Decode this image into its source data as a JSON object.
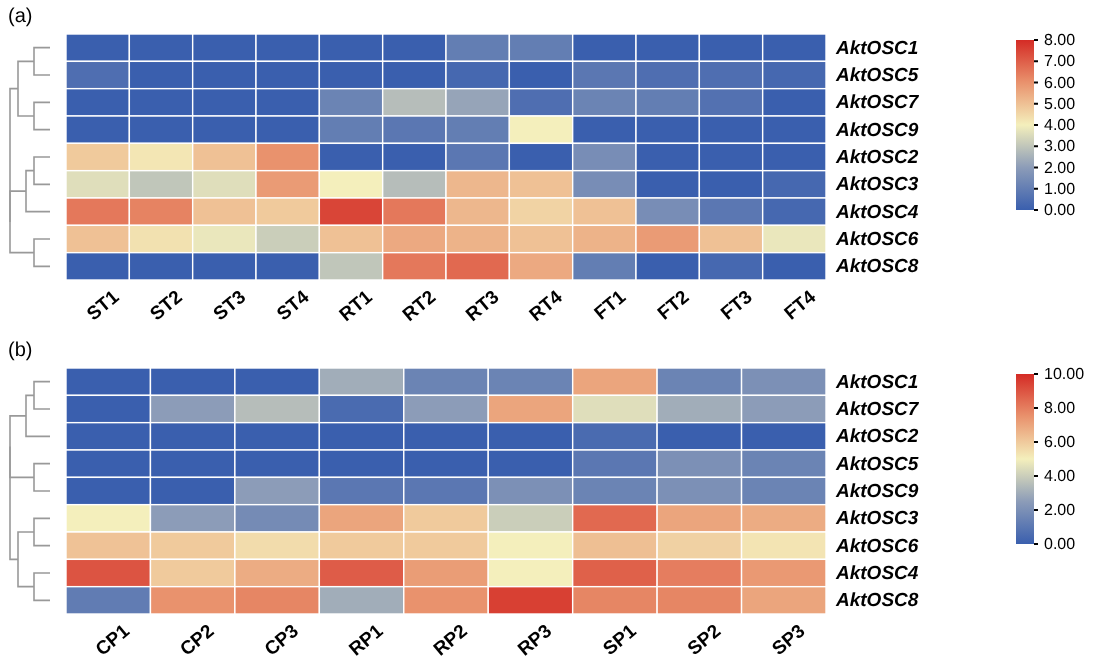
{
  "chart_data": [
    {
      "type": "heatmap",
      "title": "(a)",
      "categories": [
        "ST1",
        "ST2",
        "ST3",
        "ST4",
        "RT1",
        "RT2",
        "RT3",
        "RT4",
        "FT1",
        "FT2",
        "FT3",
        "FT4"
      ],
      "y_categories": [
        "AktOSC1",
        "AktOSC5",
        "AktOSC7",
        "AktOSC9",
        "AktOSC2",
        "AktOSC3",
        "AktOSC4",
        "AktOSC6",
        "AktOSC8"
      ],
      "cells": [
        [
          0,
          0,
          0,
          0,
          0,
          0,
          1,
          1,
          0,
          0,
          0,
          0
        ],
        [
          0.5,
          0,
          0,
          0,
          0,
          0,
          0.3,
          0,
          0.8,
          0.5,
          0.5,
          0.3
        ],
        [
          0,
          0,
          0,
          0,
          1.2,
          2.8,
          2.2,
          0.5,
          1.2,
          1,
          0.6,
          0
        ],
        [
          0,
          0,
          0,
          0,
          1,
          0.8,
          1,
          4,
          0,
          0,
          0,
          0
        ],
        [
          4.8,
          4.2,
          5,
          6,
          0,
          0,
          0.8,
          0,
          1.5,
          0,
          0,
          0
        ],
        [
          3.6,
          3,
          3.6,
          5.8,
          4,
          2.8,
          5.2,
          5,
          1.5,
          0,
          0,
          0.3
        ],
        [
          6.5,
          6.3,
          5,
          4.8,
          7.5,
          6.5,
          5.2,
          4.6,
          5,
          1.5,
          0.8,
          0.3
        ],
        [
          5,
          4.3,
          3.8,
          3.2,
          5,
          5.5,
          5.3,
          5,
          5.3,
          5.8,
          5,
          3.8
        ],
        [
          0,
          0,
          0,
          0,
          3,
          6.5,
          6.8,
          5.5,
          1,
          0,
          0.3,
          0
        ]
      ],
      "clim": [
        0,
        8
      ],
      "cticks": [
        {
          "value": 0,
          "label": "0.00"
        },
        {
          "value": 1,
          "label": "1.00"
        },
        {
          "value": 2,
          "label": "2.00"
        },
        {
          "value": 3,
          "label": "3.00"
        },
        {
          "value": 4,
          "label": "4.00"
        },
        {
          "value": 5,
          "label": "5.00"
        },
        {
          "value": 6,
          "label": "6.00"
        },
        {
          "value": 7,
          "label": "7.00"
        },
        {
          "value": 8,
          "label": "8.00"
        }
      ]
    },
    {
      "type": "heatmap",
      "title": "(b)",
      "categories": [
        "CP1",
        "CP2",
        "CP3",
        "RP1",
        "RP2",
        "RP3",
        "SP1",
        "SP2",
        "SP3"
      ],
      "y_categories": [
        "AktOSC1",
        "AktOSC7",
        "AktOSC2",
        "AktOSC5",
        "AktOSC9",
        "AktOSC3",
        "AktOSC6",
        "AktOSC4",
        "AktOSC8"
      ],
      "cells": [
        [
          0,
          0,
          0,
          3,
          1.5,
          1.5,
          7,
          1.5,
          2
        ],
        [
          0,
          2.5,
          3.5,
          0.5,
          2.5,
          7,
          4.5,
          3,
          2.5
        ],
        [
          0,
          0,
          0,
          0,
          0,
          0,
          0.5,
          0,
          0
        ],
        [
          0,
          0,
          0,
          0,
          0,
          0,
          1,
          2,
          1.5
        ],
        [
          0,
          0,
          2.5,
          1,
          1,
          2,
          1.5,
          2,
          1.5
        ],
        [
          5,
          2.5,
          1.8,
          7,
          6,
          4,
          8.5,
          7,
          6.8
        ],
        [
          6.2,
          6,
          5.5,
          6,
          6,
          5,
          6.3,
          5.8,
          5.3
        ],
        [
          9,
          6,
          6.8,
          8.8,
          7.2,
          5,
          8.7,
          8,
          7.3
        ],
        [
          1.2,
          7.5,
          7.8,
          3,
          7.5,
          9.5,
          7.8,
          7.8,
          7
        ]
      ],
      "clim": [
        0,
        10
      ],
      "cticks": [
        {
          "value": 0,
          "label": "0.00"
        },
        {
          "value": 2,
          "label": "2.00"
        },
        {
          "value": 4,
          "label": "4.00"
        },
        {
          "value": 6,
          "label": "6.00"
        },
        {
          "value": 8,
          "label": "8.00"
        },
        {
          "value": 10,
          "label": "10.00"
        }
      ]
    }
  ]
}
